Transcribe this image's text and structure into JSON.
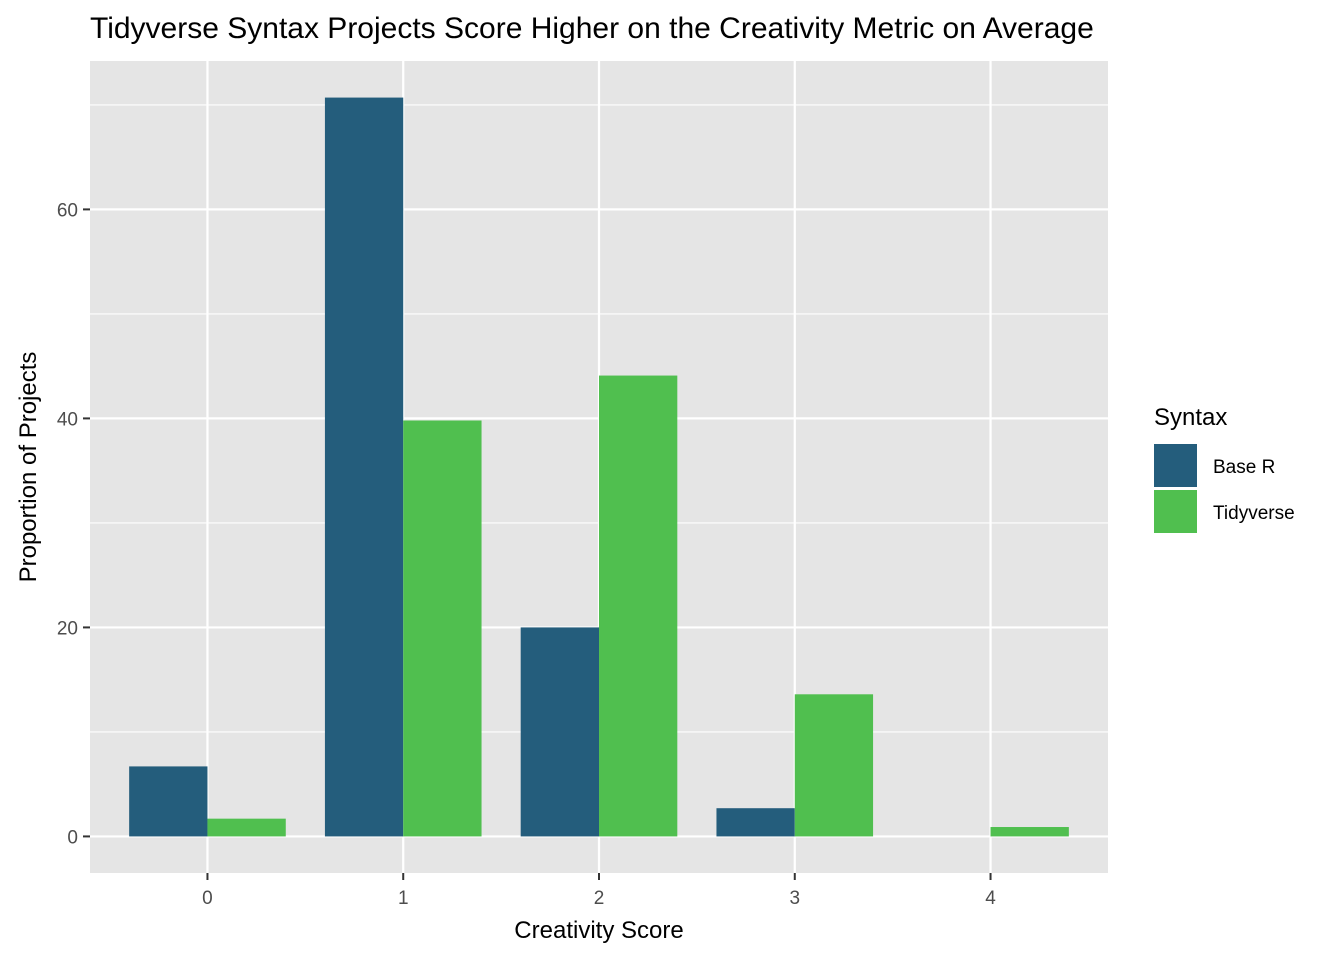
{
  "chart_data": {
    "type": "bar",
    "title": "Tidyverse Syntax Projects Score Higher on the Creativity Metric on Average",
    "xlabel": "Creativity Score",
    "ylabel": "Proportion of Projects",
    "categories": [
      "0",
      "1",
      "2",
      "3",
      "4"
    ],
    "series": [
      {
        "name": "Base R",
        "color": "#245d7c",
        "values": [
          6.7,
          70.7,
          20.0,
          2.7,
          0
        ]
      },
      {
        "name": "Tidyverse",
        "color": "#50bf4f",
        "values": [
          1.7,
          39.8,
          44.1,
          13.6,
          0.9
        ]
      }
    ],
    "yticks": [
      0,
      20,
      40,
      60
    ],
    "ylim": [
      -3.5,
      74.2
    ],
    "legend": {
      "title": "Syntax",
      "position": "right"
    },
    "grid": true
  }
}
